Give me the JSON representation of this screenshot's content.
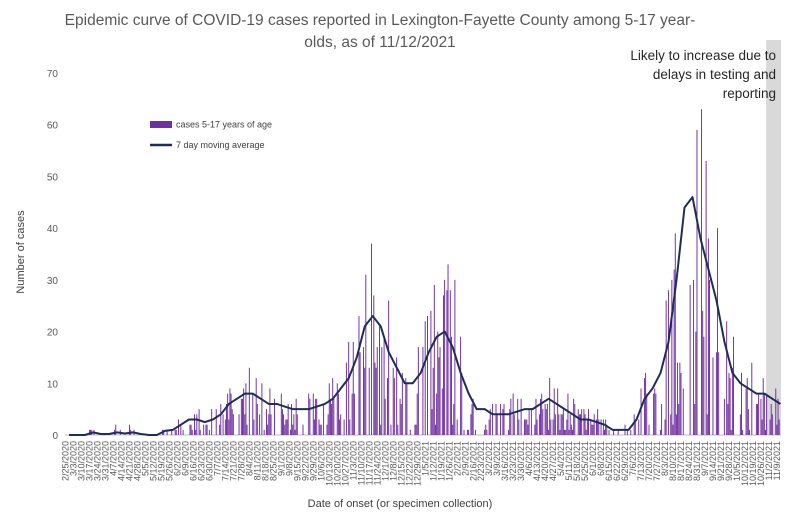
{
  "chart_data": {
    "type": "bar",
    "title": "Epidemic curve of COVID-19 cases reported in Lexington-Fayette County among 5-17 year-olds, as of 11/12/2021",
    "xlabel": "Date of onset (or specimen collection)",
    "ylabel": "Number of cases",
    "ylim": [
      0,
      70
    ],
    "yticks": [
      0,
      10,
      20,
      30,
      40,
      50,
      60,
      70
    ],
    "x_start": "2/25/2020",
    "x_end": "11/12/2021",
    "x_tick_labels": [
      "2/25/2020",
      "3/3/2020",
      "3/10/2020",
      "3/17/2020",
      "3/24/2020",
      "3/31/2020",
      "4/7/2020",
      "4/14/2020",
      "4/21/2020",
      "4/28/2020",
      "5/5/2020",
      "5/12/2020",
      "5/19/2020",
      "5/26/2020",
      "6/2/2020",
      "6/9/2020",
      "6/16/2020",
      "6/23/2020",
      "6/30/2020",
      "7/7/2020",
      "7/14/2020",
      "7/21/2020",
      "7/28/2020",
      "8/4/2020",
      "8/11/2020",
      "8/18/2020",
      "8/25/2020",
      "9/1/2020",
      "9/8/2020",
      "9/15/2020",
      "9/22/2020",
      "9/29/2020",
      "10/6/2020",
      "10/13/2020",
      "10/20/2020",
      "10/27/2020",
      "11/3/2020",
      "11/10/2020",
      "11/17/2020",
      "11/24/2020",
      "12/1/2020",
      "12/8/2020",
      "12/15/2020",
      "12/22/2020",
      "12/29/2020",
      "1/5/2021",
      "1/12/2021",
      "1/19/2021",
      "1/26/2021",
      "2/2/2021",
      "2/9/2021",
      "2/16/2021",
      "2/23/2021",
      "3/2/2021",
      "3/9/2021",
      "3/16/2021",
      "3/23/2021",
      "3/30/2021",
      "4/6/2021",
      "4/13/2021",
      "4/20/2021",
      "4/27/2021",
      "5/4/2021",
      "5/11/2021",
      "5/18/2021",
      "5/25/2021",
      "6/1/2021",
      "6/8/2021",
      "6/15/2021",
      "6/22/2021",
      "6/29/2021",
      "7/6/2021",
      "7/13/2021",
      "7/20/2021",
      "7/27/2021",
      "8/3/2021",
      "8/10/2021",
      "8/17/2021",
      "8/24/2021",
      "8/31/2021",
      "9/7/2021",
      "9/14/2021",
      "9/21/2021",
      "9/28/2021",
      "10/5/2021",
      "10/12/2021",
      "10/19/2021",
      "10/26/2021",
      "11/2/2021",
      "11/9/2021"
    ],
    "shaded_region": {
      "from": "10/31/2021",
      "to": "11/12/2021"
    },
    "legend": {
      "position": "top-left",
      "entries": [
        "cases 5-17 years of age",
        "7 day moving average"
      ]
    },
    "annotation": "Likely to increase due to delays in testing and reporting",
    "series": [
      {
        "name": "cases 5-17 years of age",
        "kind": "bar",
        "color": "#7030a0",
        "weekly_approx": [
          0,
          0,
          0,
          1,
          0,
          0,
          1,
          0,
          1,
          0,
          0,
          0,
          1,
          1,
          2,
          3,
          3,
          2,
          3,
          4,
          6,
          7,
          8,
          8,
          7,
          6,
          6,
          5,
          5,
          5,
          5,
          5,
          6,
          7,
          9,
          11,
          14,
          20,
          23,
          21,
          16,
          13,
          10,
          10,
          11,
          15,
          19,
          20,
          18,
          12,
          8,
          5,
          5,
          4,
          4,
          4,
          5,
          5,
          5,
          6,
          7,
          6,
          5,
          4,
          3,
          3,
          3,
          2,
          1,
          1,
          1,
          3,
          7,
          9,
          12,
          18,
          30,
          44,
          46,
          38,
          32,
          26,
          18,
          12,
          10,
          9,
          8,
          8,
          7,
          5
        ]
      },
      {
        "name": "7 day moving average",
        "kind": "line",
        "color": "#1f2d5a",
        "weekly_approx": [
          0,
          0,
          0,
          0.5,
          0.2,
          0.2,
          0.5,
          0.3,
          0.5,
          0.2,
          0,
          0,
          0.8,
          1,
          2,
          3,
          3,
          2.5,
          3,
          4,
          6,
          7,
          8,
          8,
          7,
          6,
          6,
          5.5,
          5,
          5,
          5,
          5.5,
          6,
          7,
          9,
          11,
          15,
          21,
          23,
          21,
          16,
          13,
          10,
          10,
          12,
          16,
          19,
          20,
          17,
          12,
          8,
          5,
          5,
          4,
          4,
          4,
          4.5,
          5,
          5,
          6,
          7,
          6,
          5,
          4,
          3,
          3,
          2.5,
          2,
          1,
          1,
          1,
          3,
          7,
          9,
          12,
          18,
          30,
          44,
          46,
          38,
          32,
          26,
          18,
          12,
          10,
          9,
          8,
          8,
          7,
          6
        ]
      }
    ]
  }
}
